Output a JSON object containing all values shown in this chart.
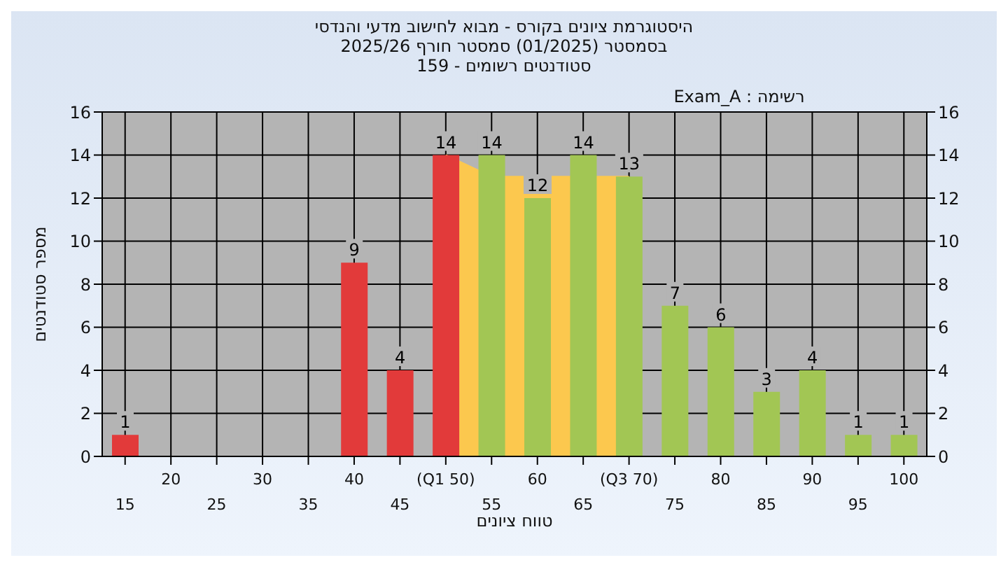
{
  "chart_data": {
    "type": "bar",
    "title": "היסטוגרמת ציונים בקורס - מבוא לחישוב מדעי והנדסי",
    "subtitle": "בסמסטר  (01/2025)  סמסטר חורף 2025/26\nסטודנטים רשומים - 159",
    "xlabel": "טווח ציונים",
    "ylabel": "מספר סטודנטים",
    "annotations": [
      "רשימה : Exam_A"
    ],
    "categories": [
      "15",
      "20",
      "25",
      "30",
      "35",
      "40",
      "45",
      "(Q1 50)",
      "55",
      "60",
      "65",
      "(Q3 70)",
      "75",
      "80",
      "85",
      "90",
      "95",
      "100"
    ],
    "series": [
      {
        "type": "area",
        "color": "#fcc84e",
        "values": [
          null,
          null,
          null,
          null,
          null,
          null,
          null,
          14,
          13,
          13,
          13,
          13,
          null,
          null,
          null,
          null,
          null,
          null
        ]
      },
      {
        "type": "bar",
        "colors": [
          "#e23a3a",
          "#e23a3a",
          "#e23a3a",
          "#e23a3a",
          "#e23a3a",
          "#e23a3a",
          "#e23a3a",
          "#e23a3a",
          "#a2c654",
          "#a2c654",
          "#a2c654",
          "#a2c654",
          "#a2c654",
          "#a2c654",
          "#a2c654",
          "#a2c654",
          "#a2c654",
          "#a2c654"
        ],
        "values": [
          1,
          0,
          0,
          0,
          0,
          9,
          4,
          14,
          14,
          12,
          14,
          13,
          7,
          6,
          3,
          4,
          1,
          1
        ],
        "value_labels": [
          "1",
          null,
          null,
          null,
          null,
          "9",
          "4",
          "14",
          "14",
          "12",
          "14",
          "13",
          "7",
          "6",
          "3",
          "4",
          "1",
          "1"
        ]
      }
    ],
    "ylim": [
      0,
      16
    ],
    "yticks": [
      0,
      2,
      4,
      6,
      8,
      10,
      12,
      14,
      16
    ],
    "y2lim": [
      0,
      16
    ],
    "y2ticks": [
      0,
      2,
      4,
      6,
      8,
      10,
      12,
      14,
      16
    ],
    "grid": true
  }
}
